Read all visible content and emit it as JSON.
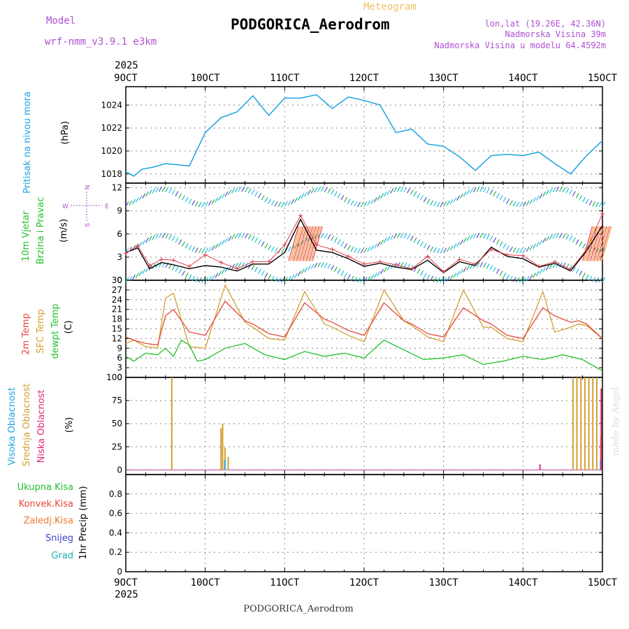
{
  "header": {
    "model_label": "Model",
    "model_name": "wrf-nmm_v3.9.1  e3km",
    "meteogram_label": "Meteogram",
    "station_title": "PODGORICA_Aerodrom",
    "lonlat": "lon,lat (19.26E, 42.36N)",
    "elevation": "Nadmorska Visina 39m",
    "model_elevation": "Nadmorska Visina u modelu 64.4592m",
    "year_top": "2025",
    "year_bottom": "2025",
    "footer_title": "PODGORICA_Aerodrom",
    "watermark": "made by Angel"
  },
  "colors": {
    "pressure": "#1aa3e0",
    "temp2m": "#e8473c",
    "sfc": "#d4a030",
    "dewpt": "#22c02a",
    "wind_black": "#000000",
    "wind_red": "#e0404a",
    "high_cloud": "#1aa3e0",
    "mid_cloud": "#d4a030",
    "low_cloud": "#e0287a",
    "model_label": "#b050d0",
    "meteogram": "#f0c060",
    "precip_total": "#22c02a",
    "precip_conv": "#e8473c",
    "precip_frz": "#f07830",
    "precip_snow": "#4040d0",
    "precip_grad": "#20b0b0",
    "grid": "#777777"
  },
  "time_axis": {
    "ticks": [
      "9OCT",
      "10OCT",
      "11OCT",
      "12OCT",
      "13OCT",
      "14OCT",
      "15OCT"
    ]
  },
  "chart_data": [
    {
      "type": "line",
      "title": "Pritisak na nivou mora",
      "ylabel": "(hPa)",
      "ylim": [
        1017.2,
        1025.6
      ],
      "yticks": [
        "1018",
        "1020",
        "1022",
        "1024"
      ],
      "yticks_values": [
        1018,
        1020,
        1022,
        1024
      ],
      "series": [
        {
          "name": "Pritisak na nivou mora",
          "color": "#1aa3e0",
          "x": [
            0,
            0.1,
            0.2,
            0.35,
            0.5,
            0.8,
            1.0,
            1.2,
            1.4,
            1.6,
            1.8,
            2.0,
            2.2,
            2.4,
            2.6,
            2.8,
            3.0,
            3.2,
            3.4,
            3.6,
            3.8,
            4.0,
            4.2,
            4.4,
            4.6,
            4.8,
            5.0,
            5.2,
            5.4,
            5.6,
            5.8,
            6.0
          ],
          "values": [
            1018.2,
            1017.8,
            1018.4,
            1018.6,
            1018.9,
            1018.7,
            1021.6,
            1022.9,
            1023.4,
            1024.8,
            1023.1,
            1024.6,
            1024.6,
            1024.9,
            1023.7,
            1024.7,
            1024.4,
            1024.0,
            1021.6,
            1021.9,
            1020.6,
            1020.4,
            1019.5,
            1018.3,
            1019.6,
            1019.7,
            1019.6,
            1019.9,
            1018.9,
            1018.0,
            1019.6,
            1020.9
          ]
        }
      ]
    },
    {
      "type": "line",
      "title": "10m Vjetar Brzina i Pravac",
      "ylabel": "(m/s)",
      "ylim": [
        0,
        12.6
      ],
      "yticks": [
        "0",
        "3",
        "6",
        "9",
        "12"
      ],
      "yticks_values": [
        0,
        3,
        6,
        9,
        12
      ],
      "compass": {
        "n": "N",
        "s": "S",
        "e": "E",
        "w": "W"
      },
      "series": [
        {
          "name": "wind speed (black)",
          "color": "#000000",
          "x": [
            0,
            0.15,
            0.3,
            0.45,
            0.6,
            0.8,
            1.0,
            1.2,
            1.4,
            1.6,
            1.8,
            2.0,
            2.2,
            2.4,
            2.6,
            2.8,
            3.0,
            3.2,
            3.4,
            3.6,
            3.8,
            4.0,
            4.2,
            4.4,
            4.6,
            4.8,
            5.0,
            5.2,
            5.4,
            5.6,
            5.8,
            6.0
          ],
          "values": [
            3.6,
            4.2,
            1.5,
            2.3,
            2.0,
            1.5,
            1.9,
            1.7,
            1.2,
            2.1,
            2.1,
            3.6,
            7.9,
            3.9,
            3.6,
            2.8,
            1.8,
            2.2,
            1.7,
            1.4,
            2.6,
            1.0,
            2.4,
            1.9,
            4.3,
            3.1,
            2.8,
            1.7,
            2.2,
            1.2,
            3.8,
            7.1
          ]
        },
        {
          "name": "wind speed (red)",
          "color": "#e0404a",
          "x": [
            0,
            0.15,
            0.3,
            0.45,
            0.6,
            0.8,
            1.0,
            1.2,
            1.4,
            1.6,
            1.8,
            2.0,
            2.2,
            2.4,
            2.6,
            2.8,
            3.0,
            3.2,
            3.4,
            3.6,
            3.8,
            4.0,
            4.2,
            4.4,
            4.6,
            4.8,
            5.0,
            5.2,
            5.4,
            5.6,
            5.8,
            6.0
          ],
          "values": [
            3.5,
            4.5,
            1.9,
            2.7,
            2.6,
            1.8,
            3.3,
            2.3,
            1.5,
            2.4,
            2.4,
            4.6,
            8.4,
            4.6,
            4.0,
            3.1,
            2.1,
            2.4,
            2.0,
            1.5,
            3.1,
            1.1,
            2.7,
            2.1,
            4.0,
            3.3,
            3.2,
            1.8,
            2.4,
            1.4,
            4.0,
            8.6
          ]
        }
      ]
    },
    {
      "type": "line",
      "title": "2m Temp / SFC Temp / dewpt Temp",
      "ylabel": "(C)",
      "ylim": [
        0,
        30
      ],
      "yticks": [
        "0",
        "3",
        "6",
        "9",
        "12",
        "15",
        "18",
        "21",
        "24",
        "27",
        "30"
      ],
      "yticks_values": [
        0,
        3,
        6,
        9,
        12,
        15,
        18,
        21,
        24,
        27,
        30
      ],
      "series": [
        {
          "name": "SFC Temp",
          "color": "#d4a030",
          "x": [
            0,
            0.1,
            0.25,
            0.4,
            0.5,
            0.6,
            0.8,
            1.0,
            1.25,
            1.5,
            1.6,
            1.8,
            2.0,
            2.25,
            2.5,
            2.6,
            2.8,
            3.0,
            3.25,
            3.5,
            3.6,
            3.8,
            4.0,
            4.25,
            4.5,
            4.6,
            4.8,
            5.0,
            5.25,
            5.4,
            5.6,
            5.7,
            5.8,
            6.0
          ],
          "values": [
            10.5,
            11.5,
            9.5,
            9.0,
            24.5,
            26.0,
            9.5,
            9.0,
            28.5,
            17.0,
            15.5,
            12.0,
            11.5,
            26.5,
            16.5,
            15.5,
            13.0,
            11.0,
            27.0,
            17.5,
            16.0,
            12.5,
            11.0,
            27.0,
            15.5,
            15.5,
            12.0,
            11.0,
            26.5,
            14.0,
            15.5,
            16.5,
            16.0,
            12.0
          ]
        },
        {
          "name": "2m Temp",
          "color": "#e8473c",
          "x": [
            0,
            0.1,
            0.25,
            0.4,
            0.5,
            0.6,
            0.8,
            1.0,
            1.25,
            1.5,
            1.6,
            1.8,
            2.0,
            2.25,
            2.5,
            2.6,
            2.8,
            3.0,
            3.25,
            3.5,
            3.6,
            3.8,
            4.0,
            4.25,
            4.5,
            4.6,
            4.8,
            5.0,
            5.25,
            5.4,
            5.6,
            5.7,
            5.8,
            6.0
          ],
          "values": [
            12.5,
            11.5,
            10.5,
            10.0,
            19.0,
            21.0,
            14.0,
            13.0,
            23.5,
            17.5,
            16.5,
            13.5,
            12.5,
            23.0,
            18.0,
            17.0,
            14.5,
            13.0,
            23.0,
            17.5,
            16.5,
            13.5,
            12.5,
            21.5,
            17.5,
            16.5,
            13.0,
            12.0,
            21.5,
            19.0,
            17.0,
            17.5,
            16.5,
            12.0
          ]
        },
        {
          "name": "dewpt Temp",
          "color": "#22c02a",
          "x": [
            0,
            0.1,
            0.25,
            0.4,
            0.5,
            0.6,
            0.7,
            0.8,
            0.9,
            1.0,
            1.25,
            1.5,
            1.75,
            2.0,
            2.25,
            2.5,
            2.75,
            3.0,
            3.25,
            3.5,
            3.75,
            4.0,
            4.25,
            4.5,
            4.75,
            5.0,
            5.25,
            5.5,
            5.75,
            6.0
          ],
          "values": [
            6.5,
            5.0,
            7.5,
            7.0,
            9.0,
            6.5,
            11.5,
            10.0,
            5.0,
            5.5,
            9.0,
            10.5,
            7.0,
            5.5,
            8.0,
            6.5,
            7.5,
            6.0,
            11.5,
            8.5,
            5.5,
            6.0,
            7.0,
            4.0,
            5.0,
            6.5,
            5.5,
            7.0,
            5.5,
            2.0
          ]
        }
      ]
    },
    {
      "type": "bar",
      "title": "Visoka / Srednja / Niska Oblacnost",
      "ylabel": "(%)",
      "ylim": [
        -5,
        100
      ],
      "yticks": [
        "0",
        "25",
        "50",
        "75",
        "100"
      ],
      "yticks_values": [
        0,
        25,
        50,
        75,
        100
      ],
      "series": [
        {
          "name": "Srednja Oblacnost",
          "color": "#d4a030",
          "x": [
            0.57,
            1.19,
            1.21,
            1.24,
            1.28,
            5.62,
            5.67,
            5.72,
            5.77,
            5.82,
            5.87,
            5.92,
            5.97
          ],
          "values": [
            100,
            45,
            50,
            24,
            14,
            100,
            100,
            100,
            100,
            100,
            100,
            100,
            36
          ]
        },
        {
          "name": "Visoka Oblacnost",
          "color": "#1aa3e0",
          "x": [
            1.22,
            5.95
          ],
          "values": [
            11,
            12
          ]
        },
        {
          "name": "Niska Oblacnost",
          "color": "#e0287a",
          "x": [
            5.17,
            5.94
          ],
          "values": [
            6,
            88
          ]
        }
      ]
    },
    {
      "type": "bar",
      "title": "1hr Precip",
      "ylabel": "1hr Precip (mm)",
      "ylim": [
        0,
        1.0
      ],
      "yticks": [
        "0",
        "0.2",
        "0.4",
        "0.6",
        "0.8"
      ],
      "yticks_values": [
        0,
        0.2,
        0.4,
        0.6,
        0.8
      ],
      "series": [
        {
          "name": "Ukupna Kisa",
          "color": "#22c02a",
          "x": [],
          "values": []
        },
        {
          "name": "Konvek.Kisa",
          "color": "#e8473c",
          "x": [],
          "values": []
        },
        {
          "name": "Zaledj.Kisa",
          "color": "#f07830",
          "x": [],
          "values": []
        },
        {
          "name": "Snijeg",
          "color": "#4040d0",
          "x": [],
          "values": []
        },
        {
          "name": "Grad",
          "color": "#20b0b0",
          "x": [],
          "values": []
        }
      ]
    }
  ],
  "labels": {
    "pressure": "Pritisak na nivou mora",
    "pressure_unit": "(hPa)",
    "wind1": "10m Vjetar",
    "wind2": "Brzina i Pravac",
    "wind_unit": "(m/s)",
    "t2m": "2m Temp",
    "sfc": "SFC Temp",
    "dewpt": "dewpt Temp",
    "temp_unit": "(C)",
    "high": "Visoka Oblacnost",
    "mid": "Srednja Oblacnost",
    "low": "Niska Oblacnost",
    "cloud_unit": "(%)",
    "precip_total": "Ukupna Kisa",
    "precip_conv": "Konvek.Kisa",
    "precip_frz": "Zaledj.Kisa",
    "precip_snow": "Snijeg",
    "precip_grad": "Grad",
    "precip_unit": "1hr Precip (mm)"
  }
}
